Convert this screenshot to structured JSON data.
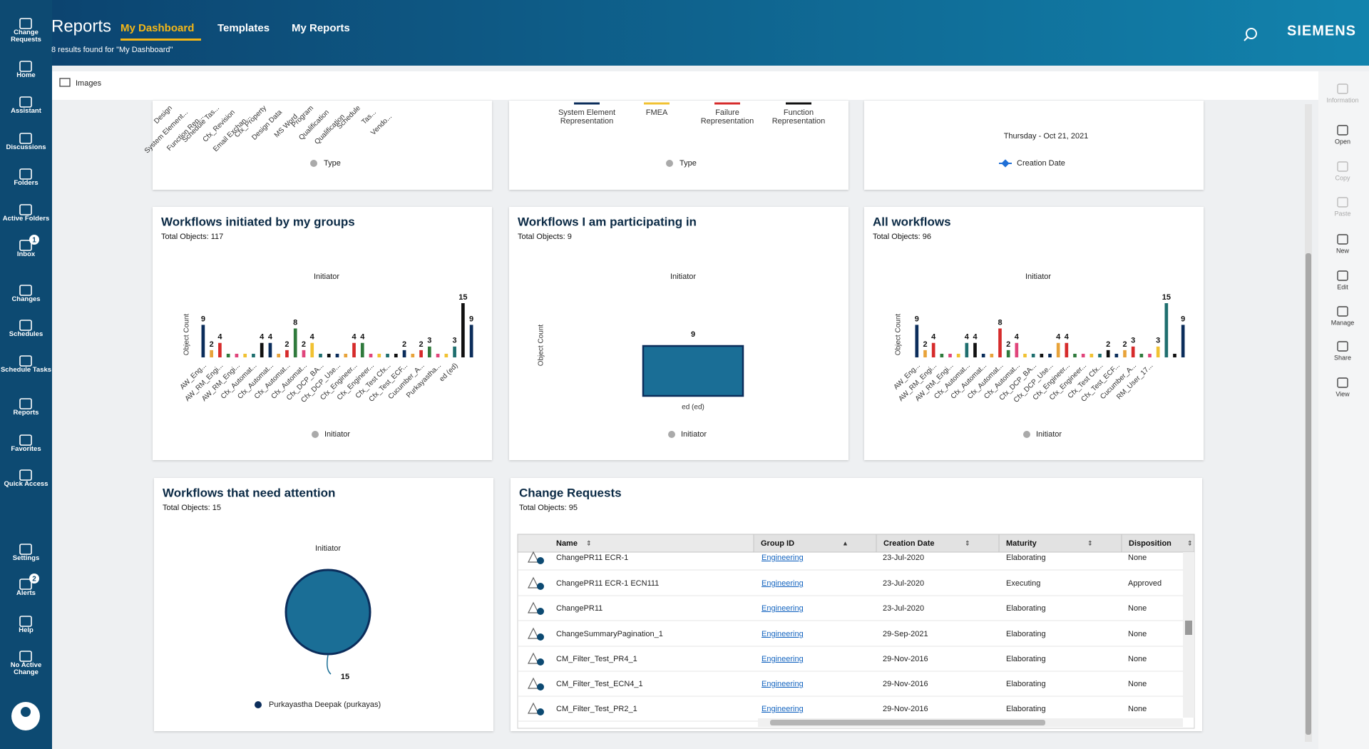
{
  "header": {
    "title": "Reports",
    "tabs": [
      "My Dashboard",
      "Templates",
      "My Reports"
    ],
    "subtitle": "8 results found for \"My Dashboard\"",
    "brand": "SIEMENS"
  },
  "sidebar": [
    {
      "label": "Change Requests"
    },
    {
      "label": "Home"
    },
    {
      "label": "Assistant"
    },
    {
      "label": "Discussions"
    },
    {
      "label": "Folders"
    },
    {
      "label": "Active Folders"
    },
    {
      "label": "Inbox",
      "badge": "1"
    },
    {
      "label": "Changes"
    },
    {
      "label": "Schedules"
    },
    {
      "label": "Schedule Tasks"
    },
    {
      "label": "Reports"
    },
    {
      "label": "Favorites"
    },
    {
      "label": "Quick Access"
    },
    {
      "label": "Settings"
    },
    {
      "label": "Alerts",
      "badge": "2"
    },
    {
      "label": "Help"
    },
    {
      "label": "No Active Change"
    }
  ],
  "toolbar": {
    "label": "Images"
  },
  "right_rail": [
    "Information",
    "Open",
    "Copy",
    "Paste",
    "New",
    "Edit",
    "Manage",
    "Share",
    "View"
  ],
  "top_panels": [
    {
      "labels": [
        "Design",
        "System Element...",
        "Function Rep...",
        "Schedule Tas...",
        "Cfx_Revision",
        "Email Exchan...",
        "Cfx_Property",
        "Design Data",
        "MS Word",
        "Program",
        "Qualification",
        "Qualification",
        "Schedule",
        "Tas...",
        "Vendo..."
      ],
      "legend": "Type"
    },
    {
      "series": [
        {
          "name": "System Element Representation",
          "color": "#0b2d5b"
        },
        {
          "name": "FMEA",
          "color": "#f1c232"
        },
        {
          "name": "Failure Representation",
          "color": "#d62b2b"
        },
        {
          "name": "Function Representation",
          "color": "#111111"
        }
      ],
      "legend": "Type"
    },
    {
      "date": "Thursday - Oct 21, 2021",
      "legend": "Creation Date",
      "color": "#1f6fd6"
    }
  ],
  "charts": [
    {
      "type": "bar",
      "title": "Workflows initiated by my groups",
      "subtitle": "Total Objects: 117",
      "axis_title": "Initiator",
      "y_label": "Object Count",
      "legend": "Initiator",
      "categories": [
        "AW_Eng...",
        null,
        "AW_RM_Engi...",
        null,
        "AW_RM_Engi...",
        null,
        "Cfx_Automat...",
        null,
        "Cfx_Automat...",
        null,
        "Cfx_Automat...",
        null,
        "Cfx_Automat...",
        null,
        "Cfx_DCP_BA...",
        null,
        "Cfx_DCP_Use...",
        null,
        "Cfx_Engineer...",
        null,
        "Cfx_Engineer...",
        null,
        "Cfx_Test Cfx...",
        null,
        "Cfx_Test_ECF...",
        null,
        "Cucumber_A...",
        null,
        "Purkayastha...",
        null,
        "ed (ed)",
        null,
        null
      ],
      "values": [
        9,
        2,
        4,
        1,
        1,
        1,
        1,
        4,
        4,
        1,
        2,
        8,
        2,
        4,
        1,
        1,
        1,
        1,
        4,
        4,
        1,
        1,
        1,
        1,
        2,
        1,
        2,
        3,
        1,
        1,
        3,
        15,
        9
      ],
      "colors": [
        "#0b2d5b",
        "#e8a33a",
        "#d62b2b",
        "#2f7a3c",
        "#e0457b",
        "#f1c232",
        "#1f6f6f",
        "#111111"
      ]
    },
    {
      "type": "bar",
      "title": "Workflows I am participating in",
      "subtitle": "Total Objects: 9",
      "axis_title": "Initiator",
      "y_label": "Object Count",
      "legend": "Initiator",
      "categories": [
        "ed (ed)"
      ],
      "values": [
        9
      ],
      "colors": [
        "#1a6e96"
      ]
    },
    {
      "type": "bar",
      "title": "All workflows",
      "subtitle": "Total Objects: 96",
      "axis_title": "Initiator",
      "y_label": "Object Count",
      "legend": "Initiator",
      "categories": [
        "AW_Eng...",
        null,
        "AW_RM_Engi...",
        null,
        "AW_RM_Engi...",
        null,
        "Cfx_Automat...",
        null,
        "Cfx_Automat...",
        null,
        "Cfx_Automat...",
        null,
        "Cfx_Automat...",
        null,
        "Cfx_DCP_BA...",
        null,
        "Cfx_DCP_Use...",
        null,
        "Cfx_Engineer...",
        null,
        "Cfx_Engineer...",
        null,
        "Cfx_Test Cfx...",
        null,
        "Cfx_Test_ECF...",
        null,
        "Cucumber_A...",
        null,
        "RM_User_17...",
        null,
        null,
        null,
        null
      ],
      "values": [
        9,
        2,
        4,
        1,
        1,
        1,
        4,
        4,
        1,
        1,
        8,
        2,
        4,
        1,
        1,
        1,
        1,
        4,
        4,
        1,
        1,
        1,
        1,
        2,
        1,
        2,
        3,
        1,
        1,
        3,
        15,
        1,
        9
      ],
      "colors": [
        "#0b2d5b",
        "#e8a33a",
        "#d62b2b",
        "#2f7a3c",
        "#e0457b",
        "#f1c232",
        "#1f6f6f",
        "#111111"
      ]
    },
    {
      "type": "pie",
      "title": "Workflows that need attention",
      "subtitle": "Total Objects: 15",
      "axis_title": "Initiator",
      "categories": [
        "Purkayastha Deepak (purkayas)"
      ],
      "values": [
        15
      ],
      "colors": [
        "#1a6e96"
      ]
    }
  ],
  "table": {
    "title": "Change Requests",
    "subtitle": "Total Objects: 95",
    "columns": [
      "Name",
      "Group ID",
      "Creation Date",
      "Maturity",
      "Disposition"
    ],
    "rows": [
      [
        "ChangePR11 ECR-1",
        "Engineering",
        "23-Jul-2020",
        "Elaborating",
        "None"
      ],
      [
        "ChangePR11 ECR-1 ECN111",
        "Engineering",
        "23-Jul-2020",
        "Executing",
        "Approved"
      ],
      [
        "ChangePR11",
        "Engineering",
        "23-Jul-2020",
        "Elaborating",
        "None"
      ],
      [
        "ChangeSummaryPagination_1",
        "Engineering",
        "29-Sep-2021",
        "Elaborating",
        "None"
      ],
      [
        "CM_Filter_Test_PR4_1",
        "Engineering",
        "29-Nov-2016",
        "Elaborating",
        "None"
      ],
      [
        "CM_Filter_Test_ECN4_1",
        "Engineering",
        "29-Nov-2016",
        "Elaborating",
        "None"
      ],
      [
        "CM_Filter_Test_PR2_1",
        "Engineering",
        "29-Nov-2016",
        "Elaborating",
        "None"
      ]
    ]
  }
}
